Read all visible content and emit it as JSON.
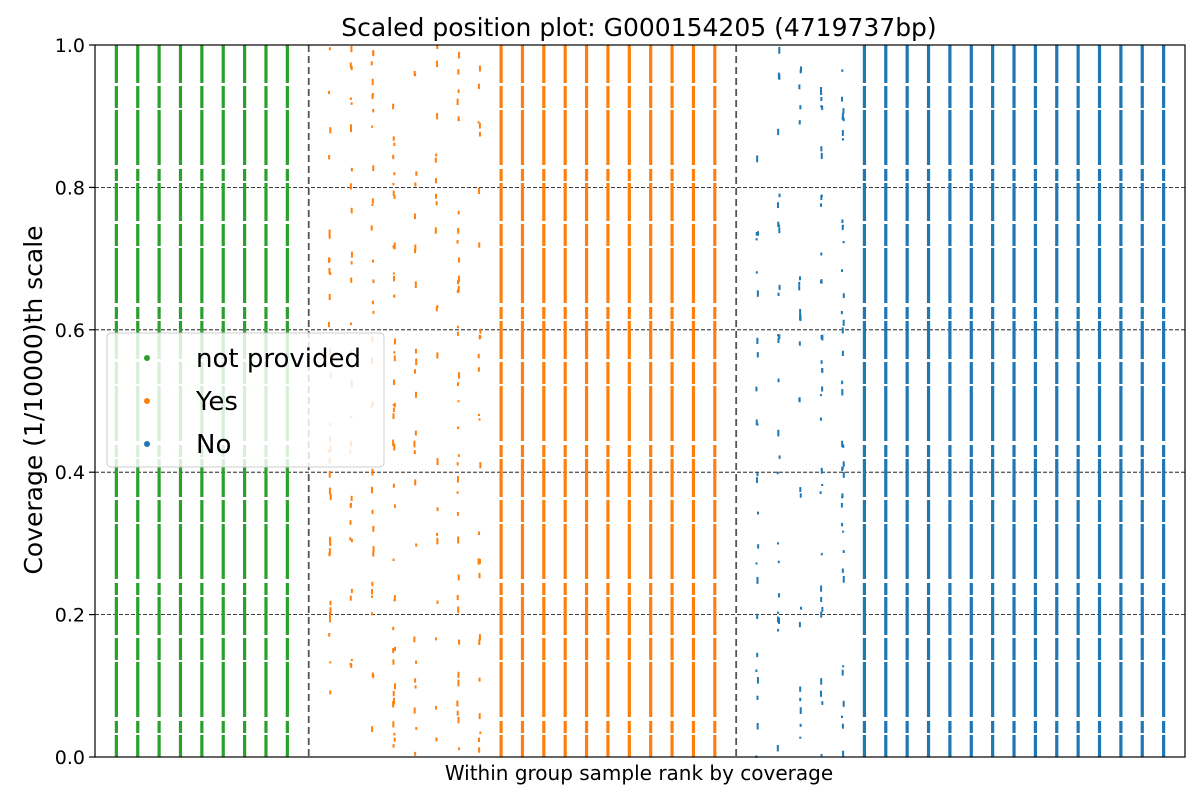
{
  "chart_data": {
    "type": "scatter",
    "title": "Scaled position plot: G000154205 (4719737bp)",
    "xlabel": "Within group sample rank by coverage",
    "ylabel": "Coverage (1/10000)th scale",
    "ylim": [
      0,
      1
    ],
    "yticks": [
      "0.0",
      "0.2",
      "0.4",
      "0.6",
      "0.8",
      "1.0"
    ],
    "grid": "horizontal dashed",
    "legend_position": "center-left",
    "group_separators": "dashed vertical lines between groups",
    "series": [
      {
        "name": "not provided",
        "color": "#2ca02c",
        "samples": [
          {
            "density": "dense"
          },
          {
            "density": "dense"
          },
          {
            "density": "dense"
          },
          {
            "density": "dense"
          },
          {
            "density": "dense"
          },
          {
            "density": "dense"
          },
          {
            "density": "dense"
          },
          {
            "density": "dense"
          },
          {
            "density": "dense"
          }
        ]
      },
      {
        "name": "Yes",
        "color": "#ff7f0e",
        "samples": [
          {
            "density": "sparse"
          },
          {
            "density": "sparse"
          },
          {
            "density": "sparse"
          },
          {
            "density": "sparse"
          },
          {
            "density": "sparse"
          },
          {
            "density": "sparse"
          },
          {
            "density": "sparse"
          },
          {
            "density": "sparse"
          },
          {
            "density": "dense"
          },
          {
            "density": "dense"
          },
          {
            "density": "dense"
          },
          {
            "density": "dense"
          },
          {
            "density": "dense"
          },
          {
            "density": "dense"
          },
          {
            "density": "dense"
          },
          {
            "density": "dense"
          },
          {
            "density": "dense"
          },
          {
            "density": "dense"
          },
          {
            "density": "dense"
          }
        ]
      },
      {
        "name": "No",
        "color": "#1f77b4",
        "samples": [
          {
            "density": "sparse"
          },
          {
            "density": "sparse"
          },
          {
            "density": "sparse"
          },
          {
            "density": "sparse"
          },
          {
            "density": "sparse"
          },
          {
            "density": "dense"
          },
          {
            "density": "dense"
          },
          {
            "density": "dense"
          },
          {
            "density": "dense"
          },
          {
            "density": "dense"
          },
          {
            "density": "dense"
          },
          {
            "density": "dense"
          },
          {
            "density": "dense"
          },
          {
            "density": "dense"
          },
          {
            "density": "dense"
          },
          {
            "density": "dense"
          },
          {
            "density": "dense"
          },
          {
            "density": "dense"
          },
          {
            "density": "dense"
          },
          {
            "density": "dense"
          }
        ]
      }
    ]
  }
}
